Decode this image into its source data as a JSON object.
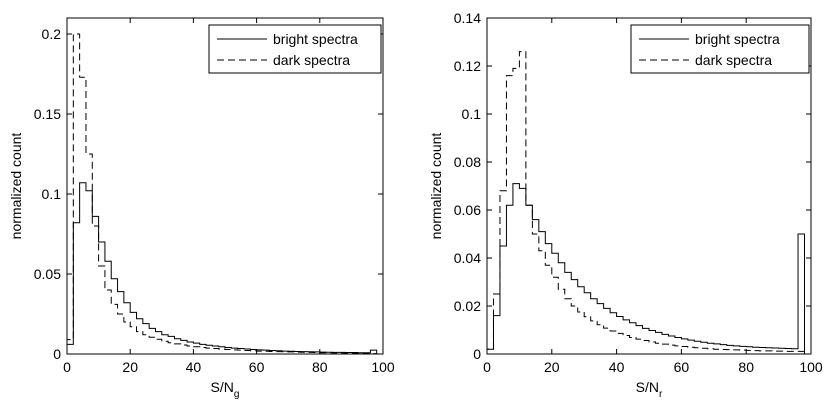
{
  "chart_data": [
    {
      "type": "histogram-step",
      "xlabel": "S/N",
      "xlabel_sub": "g",
      "ylabel": "normalized count",
      "xlim": [
        0,
        100
      ],
      "ylim": [
        0,
        0.21
      ],
      "xticks": [
        0,
        20,
        40,
        60,
        80,
        100
      ],
      "yticks": [
        0,
        0.05,
        0.1,
        0.15,
        0.2
      ],
      "ytick_labels": [
        "0",
        "0.05",
        "0.1",
        "0.15",
        "0.2"
      ],
      "bin_width": 2,
      "legend_position": "top-right",
      "series": [
        {
          "name": "bright spectra",
          "style": "solid",
          "values": [
            0.006,
            0.082,
            0.107,
            0.102,
            0.086,
            0.07,
            0.058,
            0.047,
            0.039,
            0.032,
            0.026,
            0.022,
            0.019,
            0.016,
            0.014,
            0.012,
            0.011,
            0.0095,
            0.0085,
            0.0075,
            0.0068,
            0.006,
            0.0055,
            0.005,
            0.0045,
            0.0041,
            0.0037,
            0.0034,
            0.0031,
            0.0028,
            0.0026,
            0.0024,
            0.0022,
            0.002,
            0.0018,
            0.0017,
            0.0016,
            0.0015,
            0.0014,
            0.0013,
            0.0012,
            0.0011,
            0.001,
            0.001,
            0.0009,
            0.0009,
            0.0008,
            0.0008,
            0.0024
          ]
        },
        {
          "name": "dark spectra",
          "style": "dashed",
          "values": [
            0.009,
            0.2,
            0.173,
            0.125,
            0.08,
            0.055,
            0.04,
            0.031,
            0.025,
            0.02,
            0.017,
            0.014,
            0.012,
            0.0105,
            0.0092,
            0.008,
            0.007,
            0.0063,
            0.0056,
            0.005,
            0.0045,
            0.0041,
            0.0037,
            0.0034,
            0.0031,
            0.0028,
            0.0026,
            0.0024,
            0.0022,
            0.002,
            0.0018,
            0.0017,
            0.0016,
            0.0015,
            0.0014,
            0.0013,
            0.0012,
            0.0011,
            0.001,
            0.0009,
            0.0008,
            0.0008,
            0.0007,
            0.0007,
            0.0006,
            0.0006,
            0.0005,
            0.0005,
            0.0002
          ]
        }
      ]
    },
    {
      "type": "histogram-step",
      "xlabel": "S/N",
      "xlabel_sub": "r",
      "ylabel": "normalized count",
      "xlim": [
        0,
        100
      ],
      "ylim": [
        0,
        0.14
      ],
      "xticks": [
        0,
        20,
        40,
        60,
        80,
        100
      ],
      "yticks": [
        0,
        0.02,
        0.04,
        0.06,
        0.08,
        0.1,
        0.12,
        0.14
      ],
      "ytick_labels": [
        "0",
        "0.02",
        "0.04",
        "0.06",
        "0.08",
        "0.1",
        "0.12",
        "0.14"
      ],
      "bin_width": 2,
      "legend_position": "top-right",
      "series": [
        {
          "name": "bright spectra",
          "style": "solid",
          "values": [
            0.002,
            0.016,
            0.045,
            0.062,
            0.071,
            0.069,
            0.062,
            0.056,
            0.051,
            0.046,
            0.042,
            0.038,
            0.034,
            0.031,
            0.028,
            0.0255,
            0.023,
            0.021,
            0.019,
            0.0172,
            0.0156,
            0.0142,
            0.013,
            0.0118,
            0.0107,
            0.0098,
            0.009,
            0.0082,
            0.0075,
            0.0069,
            0.0063,
            0.0058,
            0.0053,
            0.0049,
            0.0045,
            0.0042,
            0.0039,
            0.0036,
            0.0034,
            0.0032,
            0.003,
            0.0028,
            0.0027,
            0.0026,
            0.0025,
            0.0024,
            0.0023,
            0.0022,
            0.05
          ]
        },
        {
          "name": "dark spectra",
          "style": "dashed",
          "values": [
            0.002,
            0.025,
            0.068,
            0.116,
            0.119,
            0.126,
            0.062,
            0.05,
            0.043,
            0.037,
            0.032,
            0.027,
            0.023,
            0.02,
            0.0175,
            0.0155,
            0.0138,
            0.0122,
            0.0108,
            0.0096,
            0.0086,
            0.0077,
            0.0069,
            0.0062,
            0.0056,
            0.005,
            0.0045,
            0.0041,
            0.0037,
            0.0034,
            0.0031,
            0.0028,
            0.0026,
            0.0024,
            0.0022,
            0.002,
            0.0019,
            0.0018,
            0.0017,
            0.0016,
            0.0015,
            0.0014,
            0.0013,
            0.0013,
            0.0012,
            0.0012,
            0.0011,
            0.0011,
            0.0011
          ]
        }
      ]
    }
  ]
}
